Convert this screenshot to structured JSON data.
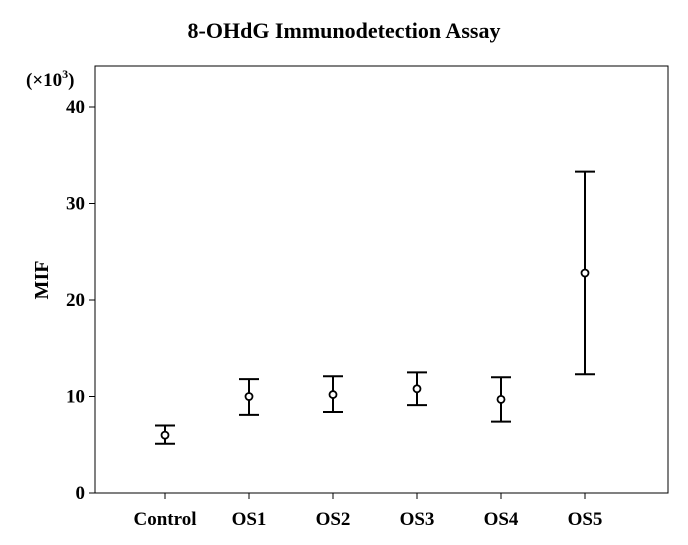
{
  "chart_data": {
    "type": "errorbar",
    "title": "8-OHdG Immunodetection Assay",
    "ylabel": "MIF",
    "yscale_label": "(×10",
    "yscale_exp": "3",
    "yscale_close": ")",
    "xlabel": "",
    "ylim": [
      0,
      43
    ],
    "yticks": [
      0,
      10,
      20,
      30,
      40
    ],
    "grid": false,
    "categories": [
      "Control",
      "OS1",
      "OS2",
      "OS3",
      "OS4",
      "OS5"
    ],
    "series": [
      {
        "mean": [
          6.0,
          10.0,
          10.2,
          10.8,
          9.7,
          22.8
        ],
        "lower": [
          5.1,
          8.1,
          8.4,
          9.1,
          7.4,
          12.3
        ],
        "upper": [
          7.0,
          11.8,
          12.1,
          12.5,
          12.0,
          33.3
        ]
      }
    ]
  }
}
